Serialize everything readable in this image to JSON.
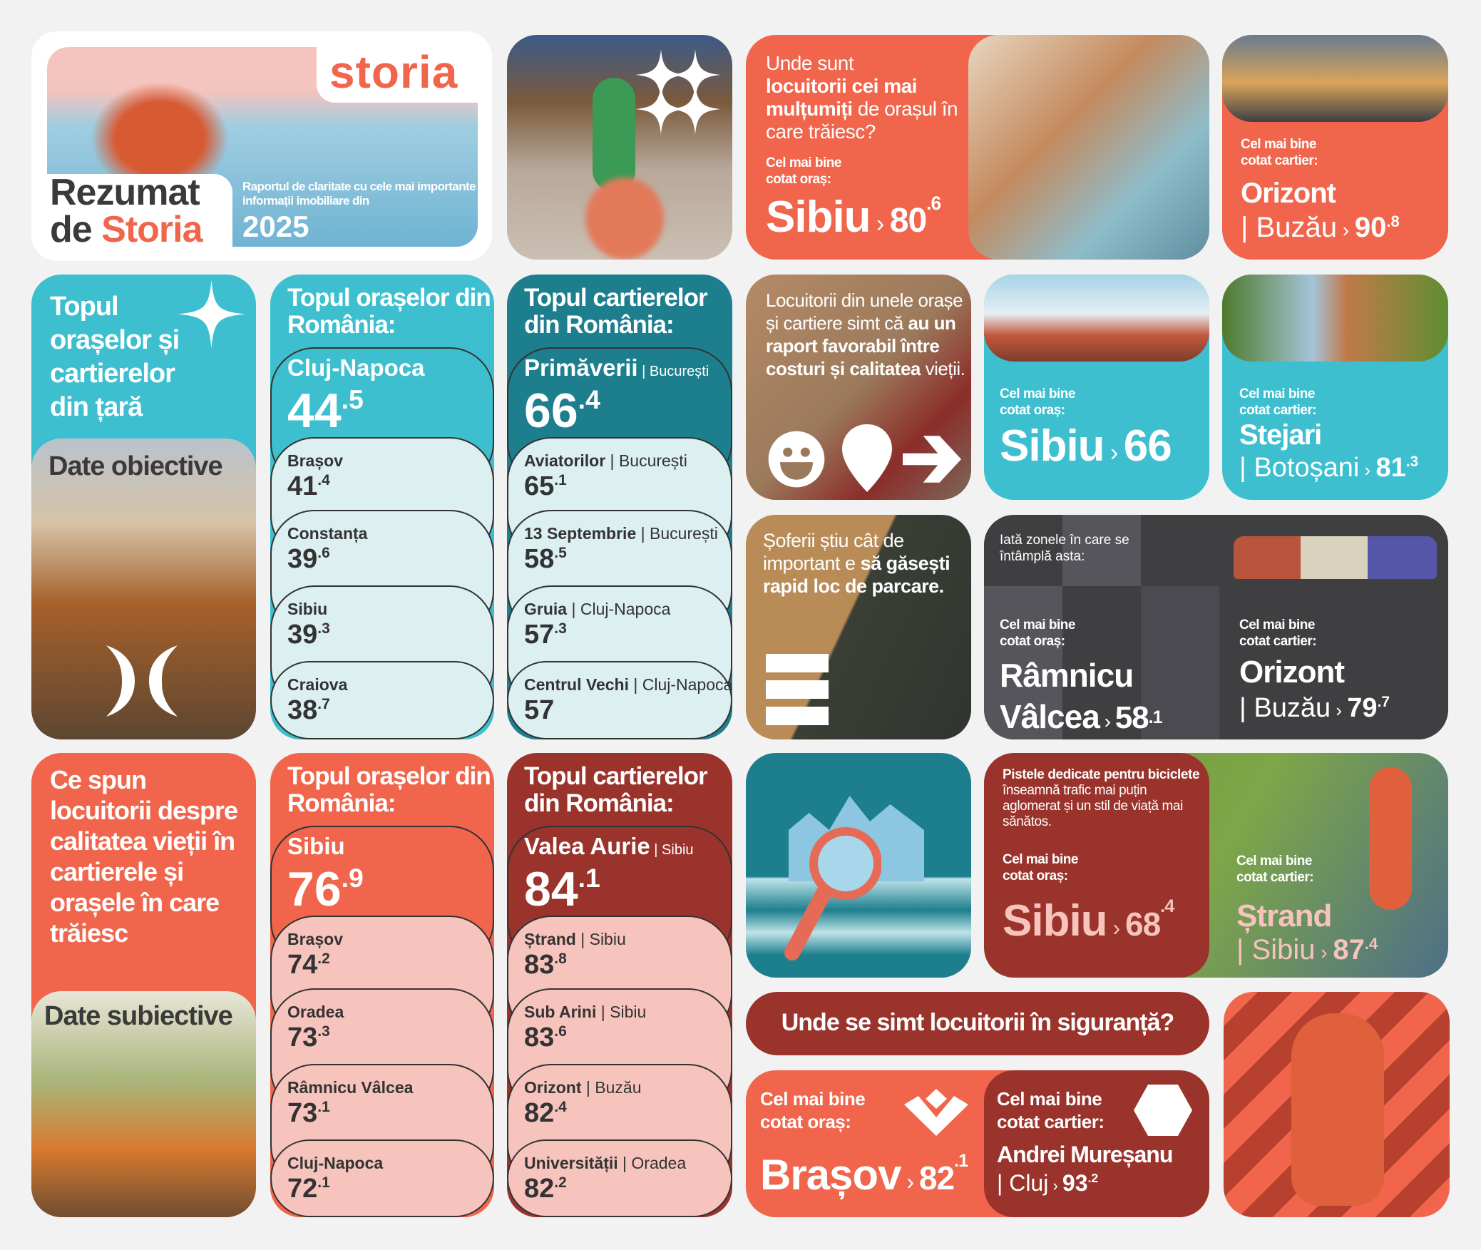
{
  "colors": {
    "orange": "#F0654B",
    "cyan": "#3DBFCF",
    "teal": "#1D7F8E",
    "dark_red": "#9A332B",
    "pink": "#F6C3BD",
    "light_cyan": "#DCEFF1",
    "dark_gray": "#3F3F42"
  },
  "header": {
    "logo": "storia",
    "title_line1": "Rezumat",
    "title_de": "de",
    "title_storia": "Storia",
    "subtitle": "Raportul de claritate cu cele mai importante informații imobiliare din",
    "year": "2025"
  },
  "happy": {
    "q_line1": "Unde sunt",
    "q_bold": "locuitorii cei mai mulțumiți",
    "q_rest": "de orașul în care trăiesc?",
    "label": "Cel mai bine cotat oraș:",
    "city": "Sibiu",
    "value": "80",
    "decimal": ".6"
  },
  "happy_district": {
    "label": "Cel mai bine cotat cartier:",
    "name": "Orizont",
    "city": "Buzău",
    "value": "90",
    "decimal": ".8"
  },
  "objective": {
    "title": "Topul orașelor și cartierelor din țară",
    "label": "Date obiective"
  },
  "subjective": {
    "title": "Ce spun locuitorii despre calitatea vieții în cartierele și orașele în care trăiesc",
    "label": "Date subiective"
  },
  "lists": [
    {
      "title": "Topul orașelor din România:",
      "bg": "#3DBFCF",
      "light": "#DCEFF1",
      "items": [
        {
          "name": "Cluj-Napoca",
          "value": "44",
          "decimal": ".5"
        },
        {
          "name": "Brașov",
          "value": "41",
          "decimal": ".4"
        },
        {
          "name": "Constanța",
          "value": "39",
          "decimal": ".6"
        },
        {
          "name": "Sibiu",
          "value": "39",
          "decimal": ".3"
        },
        {
          "name": "Craiova",
          "value": "38",
          "decimal": ".7"
        }
      ]
    },
    {
      "title": "Topul cartierelor din România:",
      "bg": "#1D7F8E",
      "light": "#DCEFF1",
      "items": [
        {
          "name": "Primăverii",
          "city": "București",
          "value": "66",
          "decimal": ".4"
        },
        {
          "name": "Aviatorilor",
          "city": "București",
          "value": "65",
          "decimal": ".1"
        },
        {
          "name": "13 Septembrie",
          "city": "București",
          "value": "58",
          "decimal": ".5"
        },
        {
          "name": "Gruia",
          "city": "Cluj-Napoca",
          "value": "57",
          "decimal": ".3"
        },
        {
          "name": "Centrul Vechi",
          "city": "Cluj-Napoca",
          "value": "57",
          "decimal": ""
        }
      ]
    },
    {
      "title": "Topul orașelor din România:",
      "bg": "#F0654B",
      "light": "#F6C3BD",
      "items": [
        {
          "name": "Sibiu",
          "value": "76",
          "decimal": ".9"
        },
        {
          "name": "Brașov",
          "value": "74",
          "decimal": ".2"
        },
        {
          "name": "Oradea",
          "value": "73",
          "decimal": ".3"
        },
        {
          "name": "Râmnicu Vâlcea",
          "value": "73",
          "decimal": ".1"
        },
        {
          "name": "Cluj-Napoca",
          "value": "72",
          "decimal": ".1"
        }
      ]
    },
    {
      "title": "Topul cartierelor din România:",
      "bg": "#9A332B",
      "light": "#F6C3BD",
      "items": [
        {
          "name": "Valea Aurie",
          "city": "Sibiu",
          "value": "84",
          "decimal": ".1"
        },
        {
          "name": "Ștrand",
          "city": "Sibiu",
          "value": "83",
          "decimal": ".8"
        },
        {
          "name": "Sub Arini",
          "city": "Sibiu",
          "value": "83",
          "decimal": ".6"
        },
        {
          "name": "Orizont",
          "city": "Buzău",
          "value": "82",
          "decimal": ".4"
        },
        {
          "name": "Universității",
          "city": "Oradea",
          "value": "82",
          "decimal": ".2"
        }
      ]
    }
  ],
  "cost": {
    "t1": "Locuitorii din unele orașe și cartiere simt că",
    "t2": "au un raport favorabil între costuri și calitatea",
    "t3": "vieții."
  },
  "cost_city": {
    "label": "Cel mai bine cotat oraș:",
    "city": "Sibiu",
    "value": "66"
  },
  "cost_district": {
    "label": "Cel mai bine cotat cartier:",
    "name": "Stejari",
    "city": "Botoșani",
    "value": "81",
    "decimal": ".3"
  },
  "parking": {
    "t1": "Șoferii știu cât de important e",
    "t2": "să găsești rapid loc de parcare."
  },
  "parking_zones": {
    "intro": "Iată zonele în care se întâmplă asta:",
    "city_label": "Cel mai bine cotat oraș:",
    "city_l1": "Râmnicu",
    "city_l2": "Vâlcea",
    "city_value": "58",
    "city_decimal": ".1",
    "district_label": "Cel mai bine cotat cartier:",
    "district": "Orizont",
    "district_city": "Buzău",
    "district_value": "79",
    "district_decimal": ".7"
  },
  "bike": {
    "t_bold": "Pistele dedicate pentru biciclete",
    "t_rest": "înseamnă trafic mai puțin aglomerat și un stil de viață mai sănătos.",
    "city_label": "Cel mai bine cotat oraș:",
    "city": "Sibiu",
    "city_value": "68",
    "city_decimal": ".4",
    "district_label": "Cel mai bine cotat cartier:",
    "district": "Ștrand",
    "district_city": "Sibiu",
    "district_value": "87",
    "district_decimal": ".4"
  },
  "safety": {
    "question": "Unde se simt locuitorii în siguranță?",
    "city_label": "Cel mai bine cotat oraș:",
    "city": "Brașov",
    "city_value": "82",
    "city_decimal": ".1",
    "district_label": "Cel mai bine cotat cartier:",
    "district": "Andrei Mureșanu",
    "district_city": "Cluj",
    "district_value": "93",
    "district_decimal": ".2"
  }
}
